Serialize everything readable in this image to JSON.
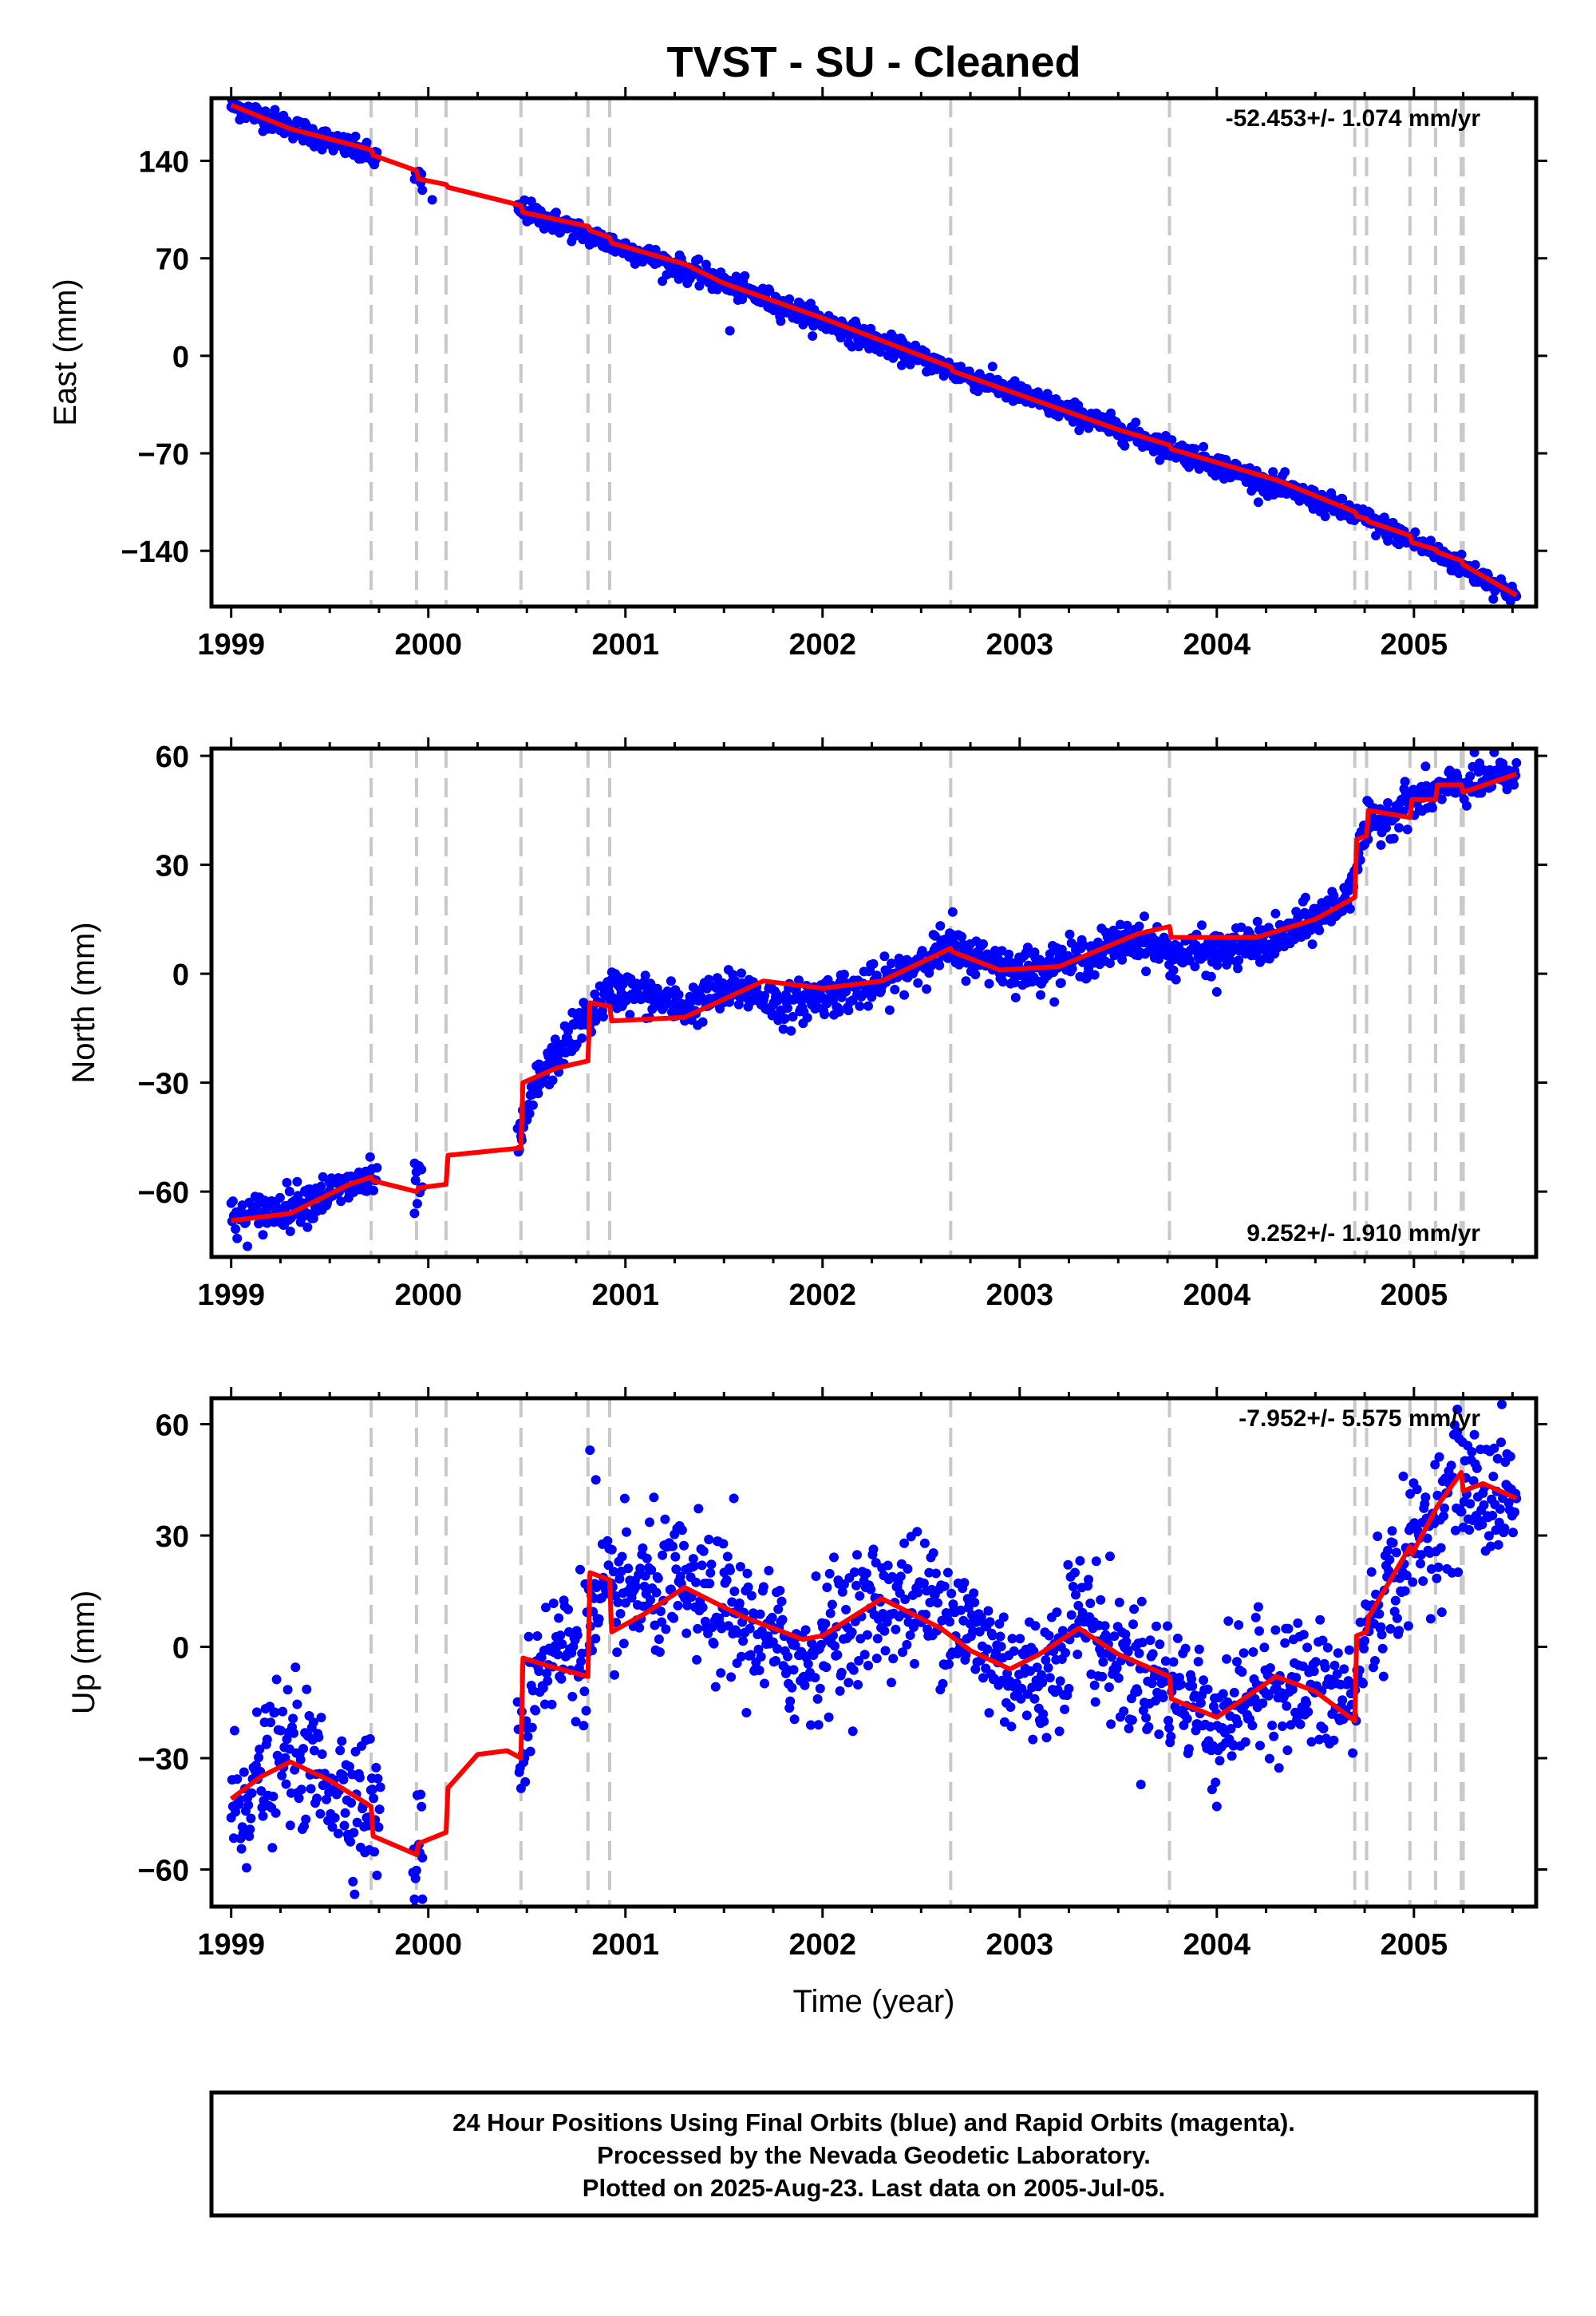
{
  "title": "TVST  - SU - Cleaned",
  "x_axis_label": "Time (year)",
  "footer": {
    "line1": "24 Hour Positions Using Final Orbits (blue) and Rapid Orbits (magenta).",
    "line2": "Processed by the Nevada Geodetic Laboratory.",
    "line3": "Plotted on 2025-Aug-23. Last data on 2005-Jul-05."
  },
  "colors": {
    "points": "#0000ff",
    "model": "#ff0000",
    "events": "#c8c8c8",
    "frame": "#000000"
  },
  "chart_data": [
    {
      "type": "scatter",
      "ylabel": "East (mm)",
      "rate_text": "-52.453+/- 1.074 mm/yr",
      "xlim": [
        1998.9,
        2005.62
      ],
      "ylim": [
        -180,
        185
      ],
      "xticks": [
        1999,
        2000,
        2001,
        2002,
        2003,
        2004,
        2005
      ],
      "xtick_labels": [
        "1999",
        "2000",
        "2001",
        "2002",
        "2003",
        "2004",
        "2005"
      ],
      "yticks": [
        140,
        70,
        0,
        -70,
        -140
      ],
      "ytick_labels": [
        "140",
        "70",
        "0",
        "−70",
        "−140"
      ],
      "events": [
        1999.71,
        1999.94,
        2000.09,
        2000.47,
        2000.81,
        2000.92,
        2002.65,
        2003.76,
        2004.7,
        2004.76,
        2004.98,
        2005.11,
        2005.24,
        2005.25
      ],
      "model": {
        "x": [
          1999.0,
          1999.3,
          1999.71,
          1999.72,
          1999.94,
          1999.95,
          2000.09,
          2000.1,
          2000.47,
          2000.48,
          2000.81,
          2000.82,
          2000.92,
          2000.93,
          2001.3,
          2001.5,
          2002.0,
          2002.65,
          2002.66,
          2003.0,
          2003.5,
          2003.76,
          2003.77,
          2004.3,
          2004.7,
          2004.71,
          2004.76,
          2004.77,
          2004.98,
          2004.99,
          2005.11,
          2005.12,
          2005.24,
          2005.25,
          2005.52
        ],
        "y": [
          180,
          163,
          148,
          144,
          133,
          127,
          123,
          121,
          108,
          103,
          93,
          90,
          85,
          81,
          66,
          52,
          27,
          -8,
          -11,
          -28,
          -53,
          -64,
          -67,
          -89,
          -112,
          -115,
          -117,
          -119,
          -129,
          -134,
          -139,
          -141,
          -147,
          -150,
          -172
        ]
      },
      "points": {
        "anchors_x": [
          1999.0,
          1999.7,
          1999.95,
          2000.02,
          2000.47,
          2000.92,
          2001.5,
          2002.65,
          2003.76,
          2004.7,
          2005.0,
          2005.52
        ],
        "anchors_y": [
          180,
          144,
          127,
          112,
          105,
          81,
          52,
          -10,
          -66,
          -114,
          -133,
          -172
        ],
        "gaps": [
          [
            1999.74,
            1999.93
          ],
          [
            1999.97,
            2000.45
          ]
        ],
        "count": 1500,
        "noise": 4,
        "outliers": [
          [
            2000.02,
            112
          ],
          [
            2001.53,
            18
          ]
        ]
      }
    },
    {
      "type": "scatter",
      "ylabel": "North (mm)",
      "rate_text": "9.252+/- 1.910 mm/yr",
      "xlim": [
        1998.9,
        2005.62
      ],
      "ylim": [
        -78,
        62
      ],
      "xticks": [
        1999,
        2000,
        2001,
        2002,
        2003,
        2004,
        2005
      ],
      "xtick_labels": [
        "1999",
        "2000",
        "2001",
        "2002",
        "2003",
        "2004",
        "2005"
      ],
      "yticks": [
        60,
        30,
        0,
        -30,
        -60
      ],
      "ytick_labels": [
        "60",
        "30",
        "0",
        "−30",
        "−60"
      ],
      "events": [
        1999.71,
        1999.94,
        2000.09,
        2000.47,
        2000.81,
        2000.92,
        2002.65,
        2003.76,
        2004.7,
        2004.76,
        2004.98,
        2005.11,
        2005.24,
        2005.25
      ],
      "model": {
        "x": [
          1999.0,
          1999.3,
          1999.6,
          1999.71,
          1999.72,
          1999.94,
          1999.95,
          2000.09,
          2000.1,
          2000.47,
          2000.48,
          2000.65,
          2000.81,
          2000.82,
          2000.92,
          2000.93,
          2001.3,
          2001.7,
          2002.0,
          2002.3,
          2002.65,
          2002.66,
          2002.9,
          2003.2,
          2003.6,
          2003.76,
          2003.77,
          2004.2,
          2004.5,
          2004.7,
          2004.71,
          2004.76,
          2004.77,
          2004.98,
          2004.99,
          2005.11,
          2005.12,
          2005.24,
          2005.25,
          2005.52
        ],
        "y": [
          -68,
          -66,
          -58,
          -56,
          -57,
          -60,
          -59,
          -58,
          -50,
          -48,
          -30,
          -26,
          -24,
          -8,
          -9,
          -13,
          -12,
          -2,
          -4,
          -2,
          7,
          6,
          1,
          2,
          11,
          13,
          10,
          10,
          15,
          21,
          37,
          38,
          45,
          43,
          48,
          48,
          52,
          52,
          50,
          55
        ]
      },
      "points": {
        "anchors_x": [
          1999.0,
          1999.3,
          1999.7,
          1999.95,
          2000.47,
          2000.55,
          2000.8,
          2000.95,
          2001.3,
          2001.6,
          2001.8,
          2002.0,
          2002.3,
          2002.6,
          2002.75,
          2003.0,
          2003.3,
          2003.6,
          2003.78,
          2004.0,
          2004.3,
          2004.65,
          2004.76,
          2005.0,
          2005.25,
          2005.52
        ],
        "anchors_y": [
          -68,
          -64,
          -57,
          -58,
          -46,
          -30,
          -12,
          -4,
          -9,
          -4,
          -9,
          -6,
          -3,
          7,
          5,
          1,
          4,
          10,
          5,
          6,
          9,
          20,
          40,
          48,
          52,
          55
        ],
        "gaps": [
          [
            1999.74,
            1999.93
          ],
          [
            1999.97,
            2000.45
          ]
        ],
        "count": 1500,
        "noise": 2.8,
        "outliers": [
          [
            1999.93,
            -66
          ],
          [
            2002.66,
            17
          ],
          [
            2004.0,
            -5
          ]
        ]
      }
    },
    {
      "type": "scatter",
      "ylabel": "Up (mm)",
      "rate_text": "-7.952+/- 5.575 mm/yr",
      "xlabel": "Time (year)",
      "xlim": [
        1998.9,
        2005.62
      ],
      "ylim": [
        -70,
        67
      ],
      "xticks": [
        1999,
        2000,
        2001,
        2002,
        2003,
        2004,
        2005
      ],
      "xtick_labels": [
        "1999",
        "2000",
        "2001",
        "2002",
        "2003",
        "2004",
        "2005"
      ],
      "yticks": [
        60,
        30,
        0,
        -30,
        -60
      ],
      "ytick_labels": [
        "60",
        "30",
        "0",
        "−30",
        "−60"
      ],
      "events": [
        1999.71,
        1999.94,
        2000.09,
        2000.47,
        2000.81,
        2000.92,
        2002.65,
        2003.76,
        2004.7,
        2004.76,
        2004.98,
        2005.11,
        2005.24,
        2005.25
      ],
      "model": {
        "x": [
          1999.0,
          1999.15,
          1999.3,
          1999.5,
          1999.71,
          1999.72,
          1999.94,
          1999.95,
          2000.09,
          2000.1,
          2000.25,
          2000.4,
          2000.47,
          2000.48,
          2000.6,
          2000.81,
          2000.82,
          2000.92,
          2000.93,
          2001.1,
          2001.3,
          2001.6,
          2001.9,
          2002.0,
          2002.3,
          2002.6,
          2002.75,
          2002.95,
          2003.1,
          2003.3,
          2003.5,
          2003.76,
          2003.77,
          2004.0,
          2004.3,
          2004.5,
          2004.7,
          2004.71,
          2004.76,
          2004.77,
          2004.98,
          2004.99,
          2005.11,
          2005.12,
          2005.24,
          2005.25,
          2005.35,
          2005.52
        ],
        "y": [
          -41,
          -35,
          -31,
          -36,
          -43,
          -51,
          -56,
          -53,
          -50,
          -38,
          -29,
          -28,
          -30,
          -3,
          -5,
          -8,
          20,
          18,
          4,
          9,
          16,
          8,
          2,
          3,
          13,
          5,
          -1,
          -6,
          -2,
          5,
          -2,
          -8,
          -14,
          -19,
          -8,
          -12,
          -20,
          3,
          4,
          8,
          27,
          25,
          37,
          38,
          47,
          42,
          44,
          40
        ]
      },
      "points": {
        "anchors_x": [
          1999.0,
          1999.15,
          1999.3,
          1999.5,
          1999.71,
          1999.8,
          1999.95,
          2000.47,
          2000.55,
          2000.8,
          2000.95,
          2001.3,
          2001.6,
          2001.9,
          2002.0,
          2002.3,
          2002.6,
          2002.75,
          2002.95,
          2003.1,
          2003.3,
          2003.5,
          2003.76,
          2004.0,
          2004.3,
          2004.5,
          2004.7,
          2004.76,
          2005.0,
          2005.24,
          2005.52
        ],
        "anchors_y": [
          -44,
          -35,
          -28,
          -36,
          -42,
          -53,
          -57,
          -28,
          -4,
          2,
          14,
          16,
          6,
          -4,
          2,
          12,
          12,
          4,
          -6,
          -10,
          10,
          -4,
          -10,
          -20,
          -8,
          -12,
          -15,
          6,
          27,
          43,
          40
        ],
        "gaps": [
          [
            1999.76,
            1999.92
          ],
          [
            1999.97,
            2000.45
          ]
        ],
        "count": 1500,
        "noise": 9,
        "outliers": [
          [
            2000.82,
            53
          ],
          [
            2000.85,
            45
          ],
          [
            1999.93,
            -68
          ],
          [
            1999.97,
            -68
          ],
          [
            2004.0,
            -43
          ],
          [
            2001.55,
            40
          ],
          [
            2005.22,
            64
          ]
        ]
      }
    }
  ]
}
